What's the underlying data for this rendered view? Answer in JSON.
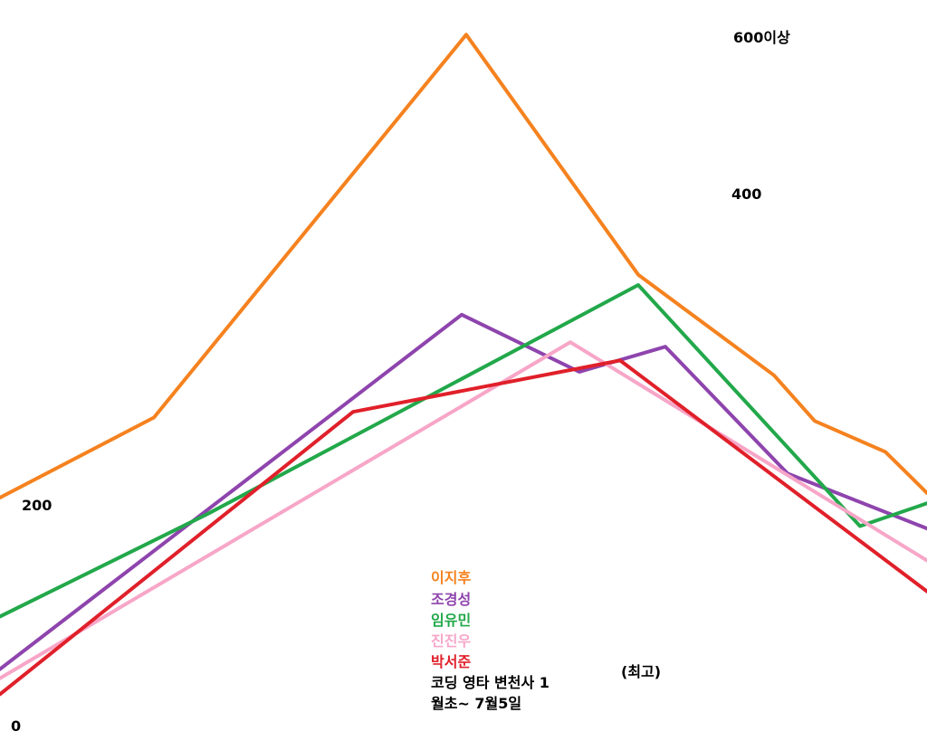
{
  "chart_data": {
    "type": "line",
    "y_ticks": [
      {
        "value": 0,
        "label": "0"
      },
      {
        "value": 200,
        "label": "200"
      },
      {
        "value": 400,
        "label": "400"
      },
      {
        "value": 600,
        "label": "600이상"
      }
    ],
    "annotation": "(최고)",
    "caption": [
      "코딩 영타 변천사 1",
      "월초~ 7월5일"
    ],
    "series": [
      {
        "name": "이지후",
        "color": "#f5821f",
        "points": [
          [
            0,
            190
          ],
          [
            170,
            260
          ],
          [
            515,
            595
          ],
          [
            705,
            385
          ],
          [
            855,
            297
          ],
          [
            900,
            257
          ],
          [
            978,
            230
          ],
          [
            1024,
            194
          ]
        ]
      },
      {
        "name": "조경성",
        "color": "#8e44ad",
        "points": [
          [
            0,
            40
          ],
          [
            510,
            350
          ],
          [
            640,
            300
          ],
          [
            735,
            322
          ],
          [
            870,
            211
          ],
          [
            1024,
            163
          ]
        ]
      },
      {
        "name": "임유민",
        "color": "#22a84a",
        "points": [
          [
            0,
            86
          ],
          [
            230,
            176
          ],
          [
            705,
            376
          ],
          [
            950,
            165
          ],
          [
            1024,
            185
          ]
        ]
      },
      {
        "name": "진진우",
        "color": "#f7a6c8",
        "points": [
          [
            0,
            32
          ],
          [
            630,
            326
          ],
          [
            1024,
            135
          ]
        ]
      },
      {
        "name": "박서준",
        "color": "#e0202a",
        "points": [
          [
            0,
            18
          ],
          [
            390,
            265
          ],
          [
            685,
            310
          ],
          [
            1024,
            108
          ]
        ]
      }
    ]
  }
}
